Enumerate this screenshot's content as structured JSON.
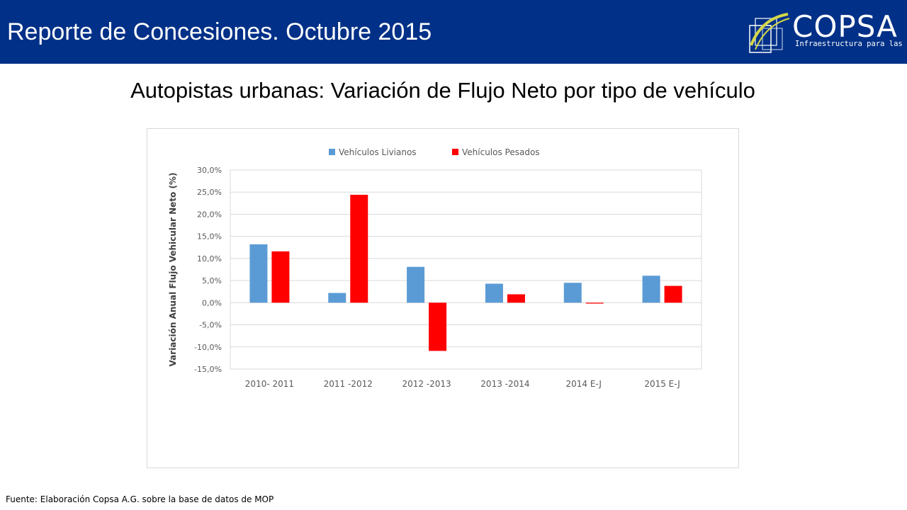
{
  "header": {
    "title": "Reporte de Concesiones. Octubre 2015",
    "background": "#003087"
  },
  "logo": {
    "name": "COPSA",
    "tagline": "Infraestructura para las personas",
    "accent": "#d4d64a"
  },
  "heading": "Autopistas urbanas: Variación de Flujo Neto por tipo de vehículo",
  "source": "Fuente: Elaboración Copsa A.G. sobre la base de datos de MOP",
  "chart_data": {
    "type": "bar",
    "categories": [
      "2010- 2011",
      "2011 -2012",
      "2012 -2013",
      "2013 -2014",
      "2014 E-J",
      "2015 E-J"
    ],
    "series": [
      {
        "name": "Vehículos Livianos",
        "color": "#5b9bd5",
        "values": [
          13.2,
          2.2,
          8.1,
          4.3,
          4.5,
          6.1
        ]
      },
      {
        "name": "Vehículos Pesados",
        "color": "#ff0000",
        "values": [
          11.6,
          24.4,
          -10.9,
          1.9,
          -0.2,
          3.8
        ]
      }
    ],
    "ylabel": "Variación Anual Flujo Vehicular Neto (%)",
    "ylim": [
      -15,
      30
    ],
    "yticks": [
      30,
      25,
      20,
      15,
      10,
      5,
      0,
      -5,
      -10,
      -15
    ],
    "ytick_labels": [
      "30,0%",
      "25,0%",
      "20,0%",
      "15,0%",
      "10,0%",
      "5,0%",
      "0,0%",
      "-5,0%",
      "-10,0%",
      "-15,0%"
    ],
    "grid": true,
    "legend_position": "top"
  }
}
